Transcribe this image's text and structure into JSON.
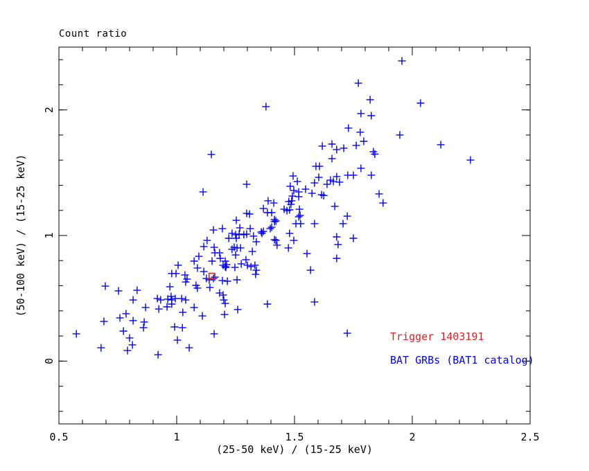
{
  "title": "Count ratio",
  "colors": {
    "background": "#ffffff",
    "axis": "#000000",
    "catalog_marker": "#0000ee",
    "trigger_marker": "#dd2222"
  },
  "legend": {
    "trigger_label": "Trigger 1403191",
    "catalog_label": "BAT GRBs (BAT1 catalog)"
  },
  "chart_data": {
    "type": "scatter",
    "title": "Count ratio",
    "xlabel": "(25-50 keV) / (15-25 keV)",
    "ylabel": "(50-100 keV) / (15-25 keV)",
    "xlim": [
      0.5,
      2.5
    ],
    "ylim": [
      -0.5,
      2.5
    ],
    "x_major_ticks": [
      0.5,
      1.0,
      1.5,
      2.0,
      2.5
    ],
    "x_tick_labels": [
      "0.5",
      "1",
      "1.5",
      "2",
      "2.5"
    ],
    "x_minor_step": 0.1,
    "y_major_ticks": [
      0.0,
      1.0,
      2.0
    ],
    "y_tick_labels": [
      "0",
      "1",
      "2"
    ],
    "y_minor_step": 0.2,
    "grid": false,
    "legend_position": "lower-right",
    "series": [
      {
        "name": "BAT GRBs (BAT1 catalog)",
        "marker": "plus",
        "color": "#0000ee",
        "points": [
          [
            1.147,
            1.645
          ],
          [
            1.771,
            2.213
          ],
          [
            1.821,
            2.081
          ],
          [
            1.379,
            2.026
          ],
          [
            1.782,
            1.971
          ],
          [
            1.826,
            1.954
          ],
          [
            1.729,
            1.855
          ],
          [
            1.779,
            1.822
          ],
          [
            1.794,
            1.75
          ],
          [
            1.618,
            1.712
          ],
          [
            1.659,
            1.728
          ],
          [
            1.762,
            1.717
          ],
          [
            1.679,
            1.684
          ],
          [
            1.709,
            1.695
          ],
          [
            1.835,
            1.667
          ],
          [
            1.841,
            1.648
          ],
          [
            1.659,
            1.612
          ],
          [
            1.591,
            1.551
          ],
          [
            1.606,
            1.551
          ],
          [
            1.782,
            1.535
          ],
          [
            1.956,
            2.39
          ],
          [
            2.035,
            2.054
          ],
          [
            1.947,
            1.8
          ],
          [
            2.121,
            1.723
          ],
          [
            2.247,
            1.601
          ],
          [
            1.112,
            1.347
          ],
          [
            1.156,
            1.044
          ],
          [
            1.129,
            0.961
          ],
          [
            1.115,
            0.912
          ],
          [
            1.159,
            0.906
          ],
          [
            1.162,
            0.862
          ],
          [
            1.094,
            0.834
          ],
          [
            1.074,
            0.796
          ],
          [
            1.15,
            0.796
          ],
          [
            1.088,
            0.741
          ],
          [
            1.006,
            0.763
          ],
          [
            1.115,
            0.713
          ],
          [
            0.979,
            0.697
          ],
          [
            0.997,
            0.697
          ],
          [
            1.035,
            0.686
          ],
          [
            1.038,
            0.63
          ],
          [
            1.044,
            0.653
          ],
          [
            1.126,
            0.658
          ],
          [
            1.138,
            0.647
          ],
          [
            1.156,
            0.658
          ],
          [
            1.162,
            0.669
          ],
          [
            1.082,
            0.603
          ],
          [
            1.088,
            0.581
          ],
          [
            1.141,
            0.586
          ],
          [
            0.971,
            0.592
          ],
          [
            0.697,
            0.597
          ],
          [
            0.753,
            0.559
          ],
          [
            0.832,
            0.564
          ],
          [
            0.976,
            0.515
          ],
          [
            1.494,
            1.474
          ],
          [
            1.512,
            1.43
          ],
          [
            1.603,
            1.463
          ],
          [
            1.585,
            1.419
          ],
          [
            1.653,
            1.441
          ],
          [
            1.665,
            1.43
          ],
          [
            1.679,
            1.469
          ],
          [
            1.691,
            1.425
          ],
          [
            1.726,
            1.48
          ],
          [
            1.75,
            1.48
          ],
          [
            1.826,
            1.48
          ],
          [
            1.638,
            1.408
          ],
          [
            1.297,
            1.408
          ],
          [
            1.482,
            1.392
          ],
          [
            1.497,
            1.358
          ],
          [
            1.547,
            1.369
          ],
          [
            1.518,
            1.347
          ],
          [
            1.574,
            1.336
          ],
          [
            1.615,
            1.325
          ],
          [
            1.624,
            1.318
          ],
          [
            1.491,
            1.314
          ],
          [
            1.518,
            1.309
          ],
          [
            1.388,
            1.276
          ],
          [
            1.412,
            1.259
          ],
          [
            1.476,
            1.27
          ],
          [
            1.488,
            1.276
          ],
          [
            1.485,
            1.248
          ],
          [
            1.671,
            1.232
          ],
          [
            1.368,
            1.215
          ],
          [
            1.456,
            1.209
          ],
          [
            1.468,
            1.198
          ],
          [
            1.479,
            1.204
          ],
          [
            1.521,
            1.209
          ],
          [
            1.385,
            1.182
          ],
          [
            1.403,
            1.182
          ],
          [
            1.297,
            1.176
          ],
          [
            1.309,
            1.171
          ],
          [
            1.524,
            1.16
          ],
          [
            1.518,
            1.149
          ],
          [
            1.724,
            1.154
          ],
          [
            1.253,
            1.121
          ],
          [
            1.415,
            1.127
          ],
          [
            1.415,
            1.11
          ],
          [
            1.421,
            1.116
          ],
          [
            1.506,
            1.094
          ],
          [
            1.526,
            1.094
          ],
          [
            1.585,
            1.094
          ],
          [
            1.706,
            1.094
          ],
          [
            1.194,
            1.055
          ],
          [
            1.268,
            1.061
          ],
          [
            1.312,
            1.055
          ],
          [
            1.359,
            1.028
          ],
          [
            1.368,
            1.033
          ],
          [
            1.362,
            1.017
          ],
          [
            1.397,
            1.055
          ],
          [
            1.403,
            1.066
          ],
          [
            1.235,
            1.017
          ],
          [
            1.25,
            1.006
          ],
          [
            1.265,
            1.011
          ],
          [
            1.285,
            1.006
          ],
          [
            1.297,
            1.011
          ],
          [
            1.221,
            0.978
          ],
          [
            1.253,
            0.978
          ],
          [
            1.326,
            0.995
          ],
          [
            1.479,
            1.017
          ],
          [
            1.497,
            0.961
          ],
          [
            1.679,
            0.989
          ],
          [
            1.685,
            0.928
          ],
          [
            1.75,
            0.978
          ],
          [
            1.338,
            0.95
          ],
          [
            1.415,
            0.967
          ],
          [
            1.421,
            0.961
          ],
          [
            1.426,
            0.923
          ],
          [
            1.244,
            0.906
          ],
          [
            1.256,
            0.901
          ],
          [
            1.235,
            0.89
          ],
          [
            1.271,
            0.901
          ],
          [
            1.474,
            0.901
          ],
          [
            1.25,
            0.845
          ],
          [
            1.321,
            0.873
          ],
          [
            1.553,
            0.856
          ],
          [
            1.679,
            0.818
          ],
          [
            1.182,
            0.862
          ],
          [
            1.185,
            0.818
          ],
          [
            1.206,
            0.796
          ],
          [
            1.212,
            0.768
          ],
          [
            1.197,
            0.763
          ],
          [
            1.206,
            0.752
          ],
          [
            1.209,
            0.746
          ],
          [
            1.247,
            0.746
          ],
          [
            1.274,
            0.774
          ],
          [
            1.294,
            0.807
          ],
          [
            1.3,
            0.763
          ],
          [
            1.315,
            0.752
          ],
          [
            1.332,
            0.763
          ],
          [
            1.338,
            0.724
          ],
          [
            1.335,
            0.691
          ],
          [
            1.568,
            0.724
          ],
          [
            1.194,
            0.641
          ],
          [
            1.215,
            0.636
          ],
          [
            1.256,
            0.647
          ],
          [
            1.182,
            0.542
          ],
          [
            1.197,
            0.526
          ],
          [
            1.859,
            1.331
          ],
          [
            1.876,
            1.259
          ],
          [
            0.815,
            0.487
          ],
          [
            0.918,
            0.498
          ],
          [
            0.932,
            0.487
          ],
          [
            0.962,
            0.493
          ],
          [
            0.979,
            0.487
          ],
          [
            0.994,
            0.498
          ],
          [
            1.021,
            0.498
          ],
          [
            1.038,
            0.487
          ],
          [
            0.868,
            0.427
          ],
          [
            0.924,
            0.415
          ],
          [
            0.959,
            0.432
          ],
          [
            0.979,
            0.454
          ],
          [
            1.026,
            0.388
          ],
          [
            1.074,
            0.427
          ],
          [
            1.109,
            0.36
          ],
          [
            0.759,
            0.344
          ],
          [
            0.785,
            0.377
          ],
          [
            0.691,
            0.316
          ],
          [
            0.815,
            0.322
          ],
          [
            0.862,
            0.311
          ],
          [
            0.859,
            0.266
          ],
          [
            0.774,
            0.239
          ],
          [
            0.8,
            0.184
          ],
          [
            0.812,
            0.129
          ],
          [
            0.574,
            0.217
          ],
          [
            0.679,
            0.106
          ],
          [
            0.791,
            0.084
          ],
          [
            0.921,
            0.051
          ],
          [
            0.991,
            0.272
          ],
          [
            1.024,
            0.266
          ],
          [
            1.003,
            0.167
          ],
          [
            1.053,
            0.106
          ],
          [
            1.159,
            0.217
          ],
          [
            1.2,
            0.487
          ],
          [
            1.206,
            0.459
          ],
          [
            1.259,
            0.41
          ],
          [
            1.203,
            0.371
          ],
          [
            1.385,
            0.454
          ],
          [
            1.585,
            0.471
          ],
          [
            1.724,
            0.222
          ]
        ]
      },
      {
        "name": "Trigger 1403191",
        "marker": "open-square",
        "color": "#dd2222",
        "points": [
          [
            1.149,
            0.677
          ]
        ]
      }
    ]
  }
}
